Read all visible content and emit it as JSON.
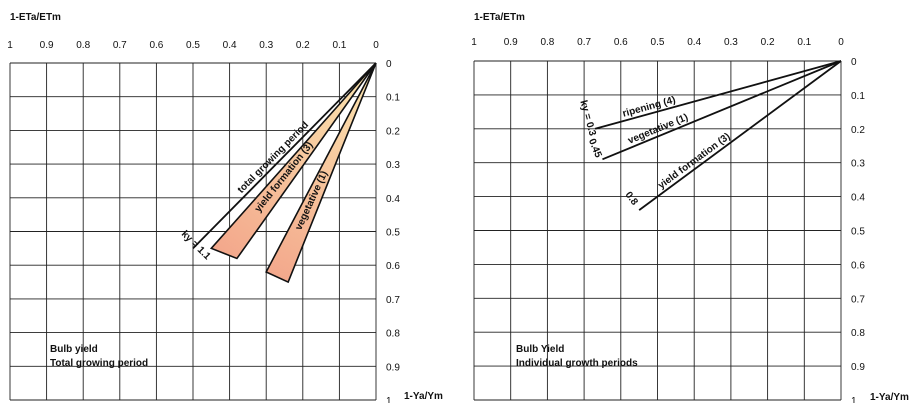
{
  "chart_data": [
    {
      "type": "line",
      "x_axis": {
        "title": "1-ETa/ETm",
        "range": [
          1,
          0
        ],
        "ticks": [
          1,
          0.9,
          0.8,
          0.7,
          0.6,
          0.5,
          0.4,
          0.3,
          0.2,
          0.1,
          0
        ],
        "tick_labels": [
          "1",
          "0.9",
          "0.8",
          "0.7",
          "0.6",
          "0.5",
          "0.4",
          "0.3",
          "0.2",
          "0.1",
          "0"
        ]
      },
      "y_axis": {
        "title": "1-Ya/Ym",
        "range": [
          0,
          1
        ],
        "ticks": [
          0,
          0.1,
          0.2,
          0.3,
          0.4,
          0.5,
          0.6,
          0.7,
          0.8,
          0.9,
          1
        ],
        "tick_labels": [
          "0",
          "0.1",
          "0.2",
          "0.3",
          "0.4",
          "0.5",
          "0.6",
          "0.7",
          "0.8",
          "0.9",
          "1"
        ]
      },
      "grid": true,
      "annotation": [
        "Bulb yield",
        "Total growing period"
      ],
      "ky_label": "ky = 1.1",
      "series": [
        {
          "name": "total growing period",
          "style": "line",
          "x": [
            0,
            0.5
          ],
          "y": [
            0,
            0.55
          ]
        },
        {
          "name": "yield formation (3)",
          "style": "wedge",
          "x": [
            0,
            0.45
          ],
          "y": [
            0,
            0.55
          ],
          "x2": [
            0,
            0.38
          ],
          "y2": [
            0,
            0.58
          ],
          "color": "#f3a88c"
        },
        {
          "name": "vegetative (1)",
          "style": "wedge",
          "x": [
            0,
            0.3
          ],
          "y": [
            0,
            0.62
          ],
          "x2": [
            0,
            0.24
          ],
          "y2": [
            0,
            0.65
          ],
          "color": "#f3a88c"
        }
      ]
    },
    {
      "type": "line",
      "x_axis": {
        "title": "1-ETa/ETm",
        "range": [
          1,
          0
        ],
        "ticks": [
          1,
          0.9,
          0.8,
          0.7,
          0.6,
          0.5,
          0.4,
          0.3,
          0.2,
          0.1,
          0
        ],
        "tick_labels": [
          "1",
          "0.9",
          "0.8",
          "0.7",
          "0.6",
          "0.5",
          "0.4",
          "0.3",
          "0.2",
          "0.1",
          "0"
        ]
      },
      "y_axis": {
        "title": "1-Ya/Ym",
        "range": [
          0,
          1
        ],
        "ticks": [
          0,
          0.1,
          0.2,
          0.3,
          0.4,
          0.5,
          0.6,
          0.7,
          0.8,
          0.9,
          1
        ],
        "tick_labels": [
          "0",
          "0.1",
          "0.2",
          "0.3",
          "0.4",
          "0.5",
          "0.6",
          "0.7",
          "0.8",
          "0.9",
          "1"
        ]
      },
      "grid": true,
      "annotation": [
        "Bulb Yield",
        "Individual growth periods"
      ],
      "series": [
        {
          "name": "ripening (4)",
          "ky_label": "ky = 0.3",
          "style": "line",
          "x": [
            0,
            0.67
          ],
          "y": [
            0,
            0.2
          ]
        },
        {
          "name": "vegetative (1)",
          "ky_label": "0.45",
          "style": "line",
          "x": [
            0,
            0.65
          ],
          "y": [
            0,
            0.29
          ]
        },
        {
          "name": "yield formation (3)",
          "ky_label": "0.8",
          "style": "line",
          "x": [
            0,
            0.55
          ],
          "y": [
            0,
            0.44
          ]
        }
      ]
    }
  ]
}
